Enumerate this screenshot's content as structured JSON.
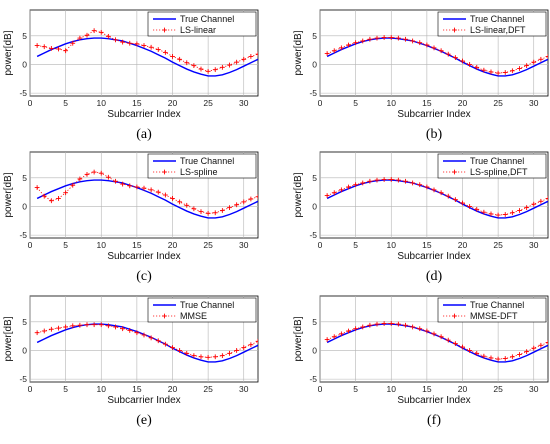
{
  "figure": {
    "panel_labels": [
      "(a)",
      "(b)",
      "(c)",
      "(d)",
      "(e)",
      "(f)"
    ]
  },
  "chart_data": [
    {
      "type": "line",
      "panel": "(a)",
      "xlabel": "Subcarrier Index",
      "ylabel": "power[dB]",
      "xlim": [
        0,
        32
      ],
      "ylim": [
        -5.5,
        9.5
      ],
      "xticks": [
        0,
        5,
        10,
        15,
        20,
        25,
        30
      ],
      "yticks": [
        -5,
        0,
        5
      ],
      "grid": true,
      "legend_position": "top-right",
      "series": [
        {
          "name": "True Channel",
          "style": "solid",
          "color": "#0000ff",
          "x": [
            1,
            2,
            3,
            4,
            5,
            6,
            7,
            8,
            9,
            10,
            11,
            12,
            13,
            14,
            15,
            16,
            17,
            18,
            19,
            20,
            21,
            22,
            23,
            24,
            25,
            26,
            27,
            28,
            29,
            30,
            31,
            32
          ],
          "y": [
            1.4,
            2.0,
            2.6,
            3.1,
            3.6,
            4.0,
            4.3,
            4.5,
            4.6,
            4.6,
            4.5,
            4.3,
            4.1,
            3.7,
            3.3,
            2.8,
            2.3,
            1.7,
            1.1,
            0.4,
            -0.2,
            -0.8,
            -1.3,
            -1.7,
            -2.0,
            -2.0,
            -1.8,
            -1.4,
            -0.9,
            -0.3,
            0.3,
            0.9
          ]
        },
        {
          "name": "LS-linear",
          "style": "dotted+plus",
          "color": "#ff0000",
          "x": [
            1,
            2,
            3,
            4,
            5,
            6,
            7,
            8,
            9,
            10,
            11,
            12,
            13,
            14,
            15,
            16,
            17,
            18,
            19,
            20,
            21,
            22,
            23,
            24,
            25,
            26,
            27,
            28,
            29,
            30,
            31,
            32
          ],
          "y": [
            3.3,
            3.1,
            2.8,
            2.7,
            2.4,
            3.7,
            4.6,
            5.1,
            5.9,
            5.6,
            4.9,
            4.3,
            3.9,
            3.7,
            3.6,
            3.3,
            3.0,
            2.6,
            2.1,
            1.4,
            0.9,
            0.3,
            -0.2,
            -0.8,
            -1.2,
            -0.9,
            -0.5,
            -0.1,
            0.4,
            0.9,
            1.4,
            1.8
          ]
        }
      ]
    },
    {
      "type": "line",
      "panel": "(b)",
      "xlabel": "Subcarrier Index",
      "ylabel": "power[dB]",
      "xlim": [
        0,
        32
      ],
      "ylim": [
        -5.5,
        9.5
      ],
      "xticks": [
        0,
        5,
        10,
        15,
        20,
        25,
        30
      ],
      "yticks": [
        -5,
        0,
        5
      ],
      "grid": true,
      "legend_position": "top-right",
      "series": [
        {
          "name": "True Channel",
          "style": "solid",
          "color": "#0000ff",
          "x": [
            1,
            2,
            3,
            4,
            5,
            6,
            7,
            8,
            9,
            10,
            11,
            12,
            13,
            14,
            15,
            16,
            17,
            18,
            19,
            20,
            21,
            22,
            23,
            24,
            25,
            26,
            27,
            28,
            29,
            30,
            31,
            32
          ],
          "y": [
            1.4,
            2.0,
            2.6,
            3.1,
            3.6,
            4.0,
            4.3,
            4.5,
            4.6,
            4.6,
            4.5,
            4.3,
            4.1,
            3.7,
            3.3,
            2.8,
            2.3,
            1.7,
            1.1,
            0.4,
            -0.2,
            -0.8,
            -1.3,
            -1.7,
            -2.0,
            -2.0,
            -1.8,
            -1.4,
            -0.9,
            -0.3,
            0.3,
            0.9
          ]
        },
        {
          "name": "LS-linear,DFT",
          "style": "dotted+plus",
          "color": "#ff0000",
          "x": [
            1,
            2,
            3,
            4,
            5,
            6,
            7,
            8,
            9,
            10,
            11,
            12,
            13,
            14,
            15,
            16,
            17,
            18,
            19,
            20,
            21,
            22,
            23,
            24,
            25,
            26,
            27,
            28,
            29,
            30,
            31,
            32
          ],
          "y": [
            1.9,
            2.4,
            2.9,
            3.4,
            3.8,
            4.1,
            4.4,
            4.6,
            4.7,
            4.7,
            4.6,
            4.4,
            4.1,
            3.8,
            3.4,
            2.9,
            2.4,
            1.8,
            1.2,
            0.6,
            0.0,
            -0.5,
            -1.0,
            -1.3,
            -1.5,
            -1.4,
            -1.1,
            -0.7,
            -0.2,
            0.4,
            0.9,
            1.4
          ]
        }
      ]
    },
    {
      "type": "line",
      "panel": "(c)",
      "xlabel": "Subcarrier Index",
      "ylabel": "power[dB]",
      "xlim": [
        0,
        32
      ],
      "ylim": [
        -5.5,
        9.5
      ],
      "xticks": [
        0,
        5,
        10,
        15,
        20,
        25,
        30
      ],
      "yticks": [
        -5,
        0,
        5
      ],
      "grid": true,
      "legend_position": "top-right",
      "series": [
        {
          "name": "True Channel",
          "style": "solid",
          "color": "#0000ff",
          "x": [
            1,
            2,
            3,
            4,
            5,
            6,
            7,
            8,
            9,
            10,
            11,
            12,
            13,
            14,
            15,
            16,
            17,
            18,
            19,
            20,
            21,
            22,
            23,
            24,
            25,
            26,
            27,
            28,
            29,
            30,
            31,
            32
          ],
          "y": [
            1.4,
            2.0,
            2.6,
            3.1,
            3.6,
            4.0,
            4.3,
            4.5,
            4.6,
            4.6,
            4.5,
            4.3,
            4.1,
            3.7,
            3.3,
            2.8,
            2.3,
            1.7,
            1.1,
            0.4,
            -0.2,
            -0.8,
            -1.3,
            -1.7,
            -2.0,
            -2.0,
            -1.8,
            -1.4,
            -0.9,
            -0.3,
            0.3,
            0.9
          ]
        },
        {
          "name": "LS-spline",
          "style": "dotted+plus",
          "color": "#ff0000",
          "x": [
            1,
            2,
            3,
            4,
            5,
            6,
            7,
            8,
            9,
            10,
            11,
            12,
            13,
            14,
            15,
            16,
            17,
            18,
            19,
            20,
            21,
            22,
            23,
            24,
            25,
            26,
            27,
            28,
            29,
            30,
            31,
            32
          ],
          "y": [
            3.3,
            1.8,
            1.0,
            1.4,
            2.4,
            3.7,
            4.8,
            5.6,
            6.0,
            5.8,
            5.1,
            4.4,
            3.9,
            3.6,
            3.4,
            3.2,
            2.9,
            2.5,
            2.0,
            1.4,
            0.8,
            0.2,
            -0.4,
            -0.9,
            -1.2,
            -1.1,
            -0.7,
            -0.2,
            0.3,
            0.8,
            1.3,
            1.7
          ]
        }
      ]
    },
    {
      "type": "line",
      "panel": "(d)",
      "xlabel": "Subcarrier Index",
      "ylabel": "power[dB]",
      "xlim": [
        0,
        32
      ],
      "ylim": [
        -5.5,
        9.5
      ],
      "xticks": [
        0,
        5,
        10,
        15,
        20,
        25,
        30
      ],
      "yticks": [
        -5,
        0,
        5
      ],
      "grid": true,
      "legend_position": "top-right",
      "series": [
        {
          "name": "True Channel",
          "style": "solid",
          "color": "#0000ff",
          "x": [
            1,
            2,
            3,
            4,
            5,
            6,
            7,
            8,
            9,
            10,
            11,
            12,
            13,
            14,
            15,
            16,
            17,
            18,
            19,
            20,
            21,
            22,
            23,
            24,
            25,
            26,
            27,
            28,
            29,
            30,
            31,
            32
          ],
          "y": [
            1.4,
            2.0,
            2.6,
            3.1,
            3.6,
            4.0,
            4.3,
            4.5,
            4.6,
            4.6,
            4.5,
            4.3,
            4.1,
            3.7,
            3.3,
            2.8,
            2.3,
            1.7,
            1.1,
            0.4,
            -0.2,
            -0.8,
            -1.3,
            -1.7,
            -2.0,
            -2.0,
            -1.8,
            -1.4,
            -0.9,
            -0.3,
            0.3,
            0.9
          ]
        },
        {
          "name": "LS-spline,DFT",
          "style": "dotted+plus",
          "color": "#ff0000",
          "x": [
            1,
            2,
            3,
            4,
            5,
            6,
            7,
            8,
            9,
            10,
            11,
            12,
            13,
            14,
            15,
            16,
            17,
            18,
            19,
            20,
            21,
            22,
            23,
            24,
            25,
            26,
            27,
            28,
            29,
            30,
            31,
            32
          ],
          "y": [
            1.9,
            2.4,
            2.9,
            3.4,
            3.8,
            4.1,
            4.4,
            4.6,
            4.7,
            4.7,
            4.6,
            4.4,
            4.1,
            3.8,
            3.4,
            2.9,
            2.4,
            1.8,
            1.2,
            0.6,
            0.0,
            -0.5,
            -1.0,
            -1.3,
            -1.5,
            -1.4,
            -1.1,
            -0.7,
            -0.2,
            0.4,
            0.9,
            1.4
          ]
        }
      ]
    },
    {
      "type": "line",
      "panel": "(e)",
      "xlabel": "Subcarrier Index",
      "ylabel": "power[dB]",
      "xlim": [
        0,
        32
      ],
      "ylim": [
        -5.5,
        9.5
      ],
      "xticks": [
        0,
        5,
        10,
        15,
        20,
        25,
        30
      ],
      "yticks": [
        -5,
        0,
        5
      ],
      "grid": true,
      "legend_position": "top-right",
      "series": [
        {
          "name": "True Channel",
          "style": "solid",
          "color": "#0000ff",
          "x": [
            1,
            2,
            3,
            4,
            5,
            6,
            7,
            8,
            9,
            10,
            11,
            12,
            13,
            14,
            15,
            16,
            17,
            18,
            19,
            20,
            21,
            22,
            23,
            24,
            25,
            26,
            27,
            28,
            29,
            30,
            31,
            32
          ],
          "y": [
            1.4,
            2.0,
            2.6,
            3.1,
            3.6,
            4.0,
            4.3,
            4.5,
            4.6,
            4.6,
            4.5,
            4.3,
            4.1,
            3.7,
            3.3,
            2.8,
            2.3,
            1.7,
            1.1,
            0.4,
            -0.2,
            -0.8,
            -1.3,
            -1.7,
            -2.0,
            -2.0,
            -1.8,
            -1.4,
            -0.9,
            -0.3,
            0.3,
            0.9
          ]
        },
        {
          "name": "MMSE",
          "style": "dotted+plus",
          "color": "#ff0000",
          "x": [
            1,
            2,
            3,
            4,
            5,
            6,
            7,
            8,
            9,
            10,
            11,
            12,
            13,
            14,
            15,
            16,
            17,
            18,
            19,
            20,
            21,
            22,
            23,
            24,
            25,
            26,
            27,
            28,
            29,
            30,
            31,
            32
          ],
          "y": [
            3.1,
            3.4,
            3.7,
            3.9,
            4.1,
            4.3,
            4.4,
            4.5,
            4.5,
            4.5,
            4.3,
            4.1,
            3.8,
            3.5,
            3.1,
            2.7,
            2.2,
            1.7,
            1.1,
            0.5,
            0.0,
            -0.5,
            -0.9,
            -1.1,
            -1.2,
            -1.1,
            -0.9,
            -0.5,
            0.0,
            0.5,
            1.0,
            1.6
          ]
        }
      ]
    },
    {
      "type": "line",
      "panel": "(f)",
      "xlabel": "Subcarrier Index",
      "ylabel": "power[dB]",
      "xlim": [
        0,
        32
      ],
      "ylim": [
        -5.5,
        9.5
      ],
      "xticks": [
        0,
        5,
        10,
        15,
        20,
        25,
        30
      ],
      "yticks": [
        -5,
        0,
        5
      ],
      "grid": true,
      "legend_position": "top-right",
      "series": [
        {
          "name": "True Channel",
          "style": "solid",
          "color": "#0000ff",
          "x": [
            1,
            2,
            3,
            4,
            5,
            6,
            7,
            8,
            9,
            10,
            11,
            12,
            13,
            14,
            15,
            16,
            17,
            18,
            19,
            20,
            21,
            22,
            23,
            24,
            25,
            26,
            27,
            28,
            29,
            30,
            31,
            32
          ],
          "y": [
            1.4,
            2.0,
            2.6,
            3.1,
            3.6,
            4.0,
            4.3,
            4.5,
            4.6,
            4.6,
            4.5,
            4.3,
            4.1,
            3.7,
            3.3,
            2.8,
            2.3,
            1.7,
            1.1,
            0.4,
            -0.2,
            -0.8,
            -1.3,
            -1.7,
            -2.0,
            -2.0,
            -1.8,
            -1.4,
            -0.9,
            -0.3,
            0.3,
            0.9
          ]
        },
        {
          "name": "MMSE-DFT",
          "style": "dotted+plus",
          "color": "#ff0000",
          "x": [
            1,
            2,
            3,
            4,
            5,
            6,
            7,
            8,
            9,
            10,
            11,
            12,
            13,
            14,
            15,
            16,
            17,
            18,
            19,
            20,
            21,
            22,
            23,
            24,
            25,
            26,
            27,
            28,
            29,
            30,
            31,
            32
          ],
          "y": [
            1.9,
            2.4,
            2.9,
            3.4,
            3.8,
            4.1,
            4.4,
            4.6,
            4.7,
            4.7,
            4.6,
            4.4,
            4.1,
            3.8,
            3.4,
            2.9,
            2.4,
            1.8,
            1.2,
            0.6,
            0.0,
            -0.5,
            -1.0,
            -1.3,
            -1.5,
            -1.4,
            -1.1,
            -0.7,
            -0.2,
            0.4,
            0.9,
            1.4
          ]
        }
      ]
    }
  ]
}
